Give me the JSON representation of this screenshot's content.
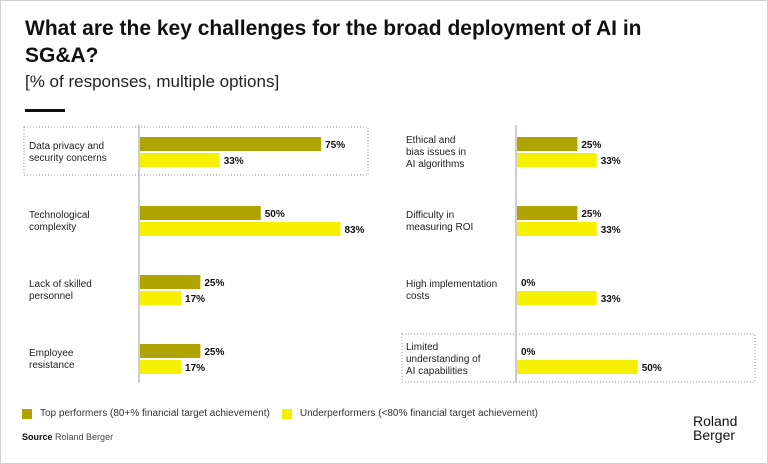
{
  "header": {
    "title": "What are the key challenges for the broad deployment of AI in SG&A?",
    "subtitle": "[% of responses, multiple options]"
  },
  "chart_data": {
    "type": "bar",
    "orientation": "horizontal",
    "title": "What are the key challenges for the broad deployment of AI in SG&A?",
    "subtitle": "[% of responses, multiple options]",
    "unit": "%",
    "xlim": [
      0,
      100
    ],
    "grid": false,
    "legend_position": "bottom-left",
    "colors": {
      "top": "#b0a400",
      "under": "#f4f000"
    },
    "panels": [
      {
        "categories": [
          "Data privacy and security concerns",
          "Technological complexity",
          "Lack of skilled personnel",
          "Employee resistance"
        ],
        "highlighted": [
          true,
          false,
          false,
          false
        ],
        "series": [
          {
            "name": "Top performers (80+% financial target achievement)",
            "values": [
              75,
              50,
              25,
              25
            ]
          },
          {
            "name": "Underperformers (<80% financial target achievement)",
            "values": [
              33,
              83,
              17,
              17
            ]
          }
        ]
      },
      {
        "categories": [
          "Ethical and bias issues in AI algorithms",
          "Difficulty in measuring ROI",
          "High implementation costs",
          "Limited understanding of AI capabilities"
        ],
        "highlighted": [
          false,
          false,
          false,
          true
        ],
        "series": [
          {
            "name": "Top performers (80+% financial target achievement)",
            "values": [
              25,
              25,
              0,
              0
            ]
          },
          {
            "name": "Underperformers (<80% financial target achievement)",
            "values": [
              33,
              33,
              33,
              50
            ]
          }
        ]
      }
    ],
    "category_label_lines": [
      [
        [
          "Data privacy and",
          "security concerns"
        ],
        [
          "Technological",
          "complexity"
        ],
        [
          "Lack of skilled",
          "personnel"
        ],
        [
          "Employee",
          "resistance"
        ]
      ],
      [
        [
          "Ethical and",
          "bias issues in",
          "AI algorithms"
        ],
        [
          "Difficulty in",
          "measuring ROI"
        ],
        [
          "High implementation",
          "costs"
        ],
        [
          "Limited",
          "understanding of",
          "AI capabilities"
        ]
      ]
    ]
  },
  "legend": {
    "top": "Top performers (80+% financial target achievement)",
    "under": "Underperformers (<80% financial target achievement)"
  },
  "footer": {
    "source_label": "Source",
    "source_text": "Roland Berger",
    "logo_line1": "Roland",
    "logo_line2": "Berger"
  }
}
